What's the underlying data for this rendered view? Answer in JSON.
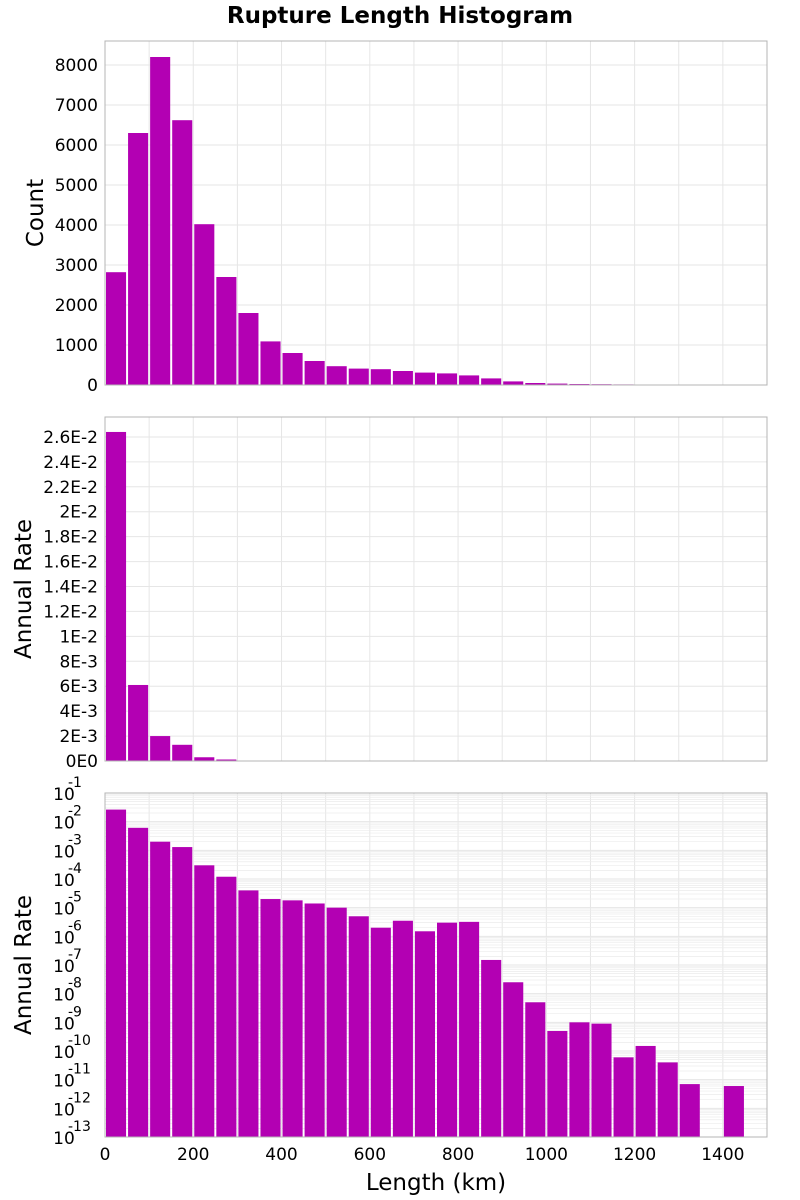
{
  "chart_data": {
    "type": "bar",
    "title": "Rupture Length Histogram",
    "xlabel": "Length (km)",
    "xlim": [
      0,
      1500
    ],
    "xticks": [
      "0",
      "200",
      "400",
      "600",
      "800",
      "1000",
      "1200",
      "1400"
    ],
    "bin_width": 50,
    "bar_color": "#b300b3",
    "grid": true,
    "panels": [
      {
        "ylabel": "Count",
        "scale": "linear",
        "ylim": [
          0,
          8600
        ],
        "yticks": [
          "0",
          "1000",
          "2000",
          "3000",
          "4000",
          "5000",
          "6000",
          "7000",
          "8000"
        ],
        "x": [
          25,
          75,
          125,
          175,
          225,
          275,
          325,
          375,
          425,
          475,
          525,
          575,
          625,
          675,
          725,
          775,
          825,
          875,
          925,
          975,
          1025,
          1075,
          1125,
          1175,
          1225,
          1275,
          1325,
          1375,
          1425
        ],
        "values": [
          2820,
          6300,
          8200,
          6620,
          4020,
          2700,
          1800,
          1090,
          800,
          600,
          470,
          410,
          395,
          350,
          310,
          290,
          240,
          165,
          90,
          50,
          35,
          25,
          20,
          15,
          10,
          7,
          5,
          3,
          2
        ]
      },
      {
        "ylabel": "Annual Rate",
        "scale": "linear",
        "ylim": [
          0,
          0.0276
        ],
        "yticks": [
          "0E0",
          "2E-3",
          "4E-3",
          "6E-3",
          "8E-3",
          "1E-2",
          "1.2E-2",
          "1.4E-2",
          "1.6E-2",
          "1.8E-2",
          "2E-2",
          "2.2E-2",
          "2.4E-2",
          "2.6E-2"
        ],
        "x": [
          25,
          75,
          125,
          175,
          225,
          275,
          325,
          375,
          425,
          475,
          525,
          575,
          625,
          675,
          725,
          775,
          825,
          875,
          925,
          975,
          1025,
          1075,
          1125,
          1175,
          1225,
          1275,
          1325,
          1375,
          1425
        ],
        "values": [
          0.0264,
          0.0061,
          0.002,
          0.0013,
          0.0003,
          0.00012,
          4e-05,
          2e-05,
          1.8e-05,
          1.4e-05,
          1e-05,
          5e-06,
          2e-06,
          3.5e-06,
          1.5e-06,
          3e-06,
          3.2e-06,
          1.5e-07,
          2.5e-08,
          5e-09,
          5e-10,
          1e-09,
          9e-10,
          6e-11,
          1.5e-10,
          4e-11,
          7e-12,
          1e-13,
          6e-12
        ]
      },
      {
        "ylabel": "Annual Rate",
        "scale": "log",
        "ylim": [
          1e-13,
          0.1
        ],
        "ytick_base": "10",
        "ytick_exponents": [
          "-13",
          "-12",
          "-11",
          "-10",
          "-9",
          "-8",
          "-7",
          "-6",
          "-5",
          "-4",
          "-3",
          "-2",
          "-1"
        ],
        "x": [
          25,
          75,
          125,
          175,
          225,
          275,
          325,
          375,
          425,
          475,
          525,
          575,
          625,
          675,
          725,
          775,
          825,
          875,
          925,
          975,
          1025,
          1075,
          1125,
          1175,
          1225,
          1275,
          1325,
          1375,
          1425
        ],
        "values": [
          0.0264,
          0.0061,
          0.002,
          0.0013,
          0.0003,
          0.00012,
          4e-05,
          2e-05,
          1.8e-05,
          1.4e-05,
          1e-05,
          5e-06,
          2e-06,
          3.5e-06,
          1.5e-06,
          3e-06,
          3.2e-06,
          1.5e-07,
          2.5e-08,
          5e-09,
          5e-10,
          1e-09,
          9e-10,
          6e-11,
          1.5e-10,
          4e-11,
          7e-12,
          1e-13,
          6e-12
        ]
      }
    ]
  }
}
